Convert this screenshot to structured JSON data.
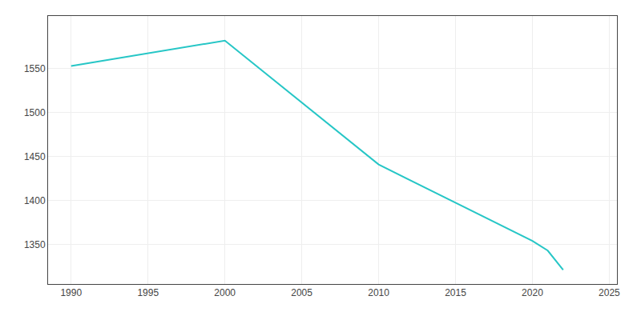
{
  "chart_data": {
    "type": "line",
    "x": [
      1990,
      2000,
      2010,
      2020,
      2021,
      2022
    ],
    "values": [
      1553,
      1582,
      1441,
      1354,
      1343,
      1321
    ],
    "color": "#26C6C6",
    "xlim": [
      1988.5,
      2025.5
    ],
    "ylim": [
      1305,
      1610
    ],
    "xticks": [
      1990,
      1995,
      2000,
      2005,
      2010,
      2015,
      2020,
      2025
    ],
    "yticks": [
      1350,
      1400,
      1450,
      1500,
      1550
    ],
    "grid": true
  }
}
